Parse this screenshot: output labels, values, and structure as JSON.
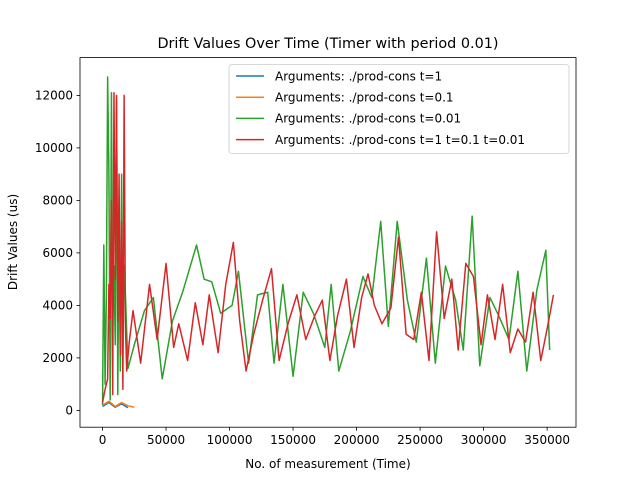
{
  "chart_data": {
    "type": "line",
    "title": "Drift Values Over Time (Timer with period 0.01)",
    "xlabel": "No. of measurement (Time)",
    "ylabel": "Drift Values (us)",
    "xlim": [
      -17750,
      372750
    ],
    "ylim": [
      -640,
      13440
    ],
    "x_ticks": [
      0,
      50000,
      100000,
      150000,
      200000,
      250000,
      300000,
      350000
    ],
    "x_tick_labels": [
      "0",
      "50000",
      "100000",
      "150000",
      "200000",
      "250000",
      "300000",
      "350000"
    ],
    "y_ticks": [
      0,
      2000,
      4000,
      6000,
      8000,
      10000,
      12000
    ],
    "y_tick_labels": [
      "0",
      "2000",
      "4000",
      "6000",
      "8000",
      "10000",
      "12000"
    ],
    "grid": false,
    "legend_position": "top-right",
    "series": [
      {
        "name": "Arguments: ./prod-cons t=1",
        "color": "#1f77b4",
        "x": [
          0,
          5000,
          10000,
          15000,
          20000
        ],
        "y": [
          150,
          300,
          120,
          250,
          100
        ]
      },
      {
        "name": "Arguments: ./prod-cons t=0.1",
        "color": "#ff7f0e",
        "x": [
          0,
          5000,
          10000,
          15000,
          20000,
          25000
        ],
        "y": [
          200,
          350,
          150,
          300,
          180,
          120
        ]
      },
      {
        "name": "Arguments: ./prod-cons t=0.01",
        "color": "#2ca02c",
        "x": [
          0,
          1000,
          2000,
          3000,
          4000,
          5000,
          6000,
          7000,
          8000,
          9000,
          10000,
          11000,
          12000,
          13000,
          14000,
          15000,
          16000,
          17000,
          18000,
          20000,
          25000,
          33000,
          40000,
          47000,
          55000,
          63000,
          74000,
          80000,
          86000,
          93000,
          102000,
          107000,
          115000,
          122000,
          130000,
          135000,
          142000,
          150000,
          158000,
          166000,
          175000,
          180000,
          186000,
          195000,
          205000,
          212000,
          219000,
          225000,
          232000,
          240000,
          247000,
          255000,
          262000,
          270000,
          278000,
          284000,
          291000,
          297000,
          305000,
          312000,
          320000,
          327000,
          334000,
          342000,
          349000,
          352000
        ],
        "y": [
          200,
          6300,
          1000,
          4300,
          12700,
          9100,
          400,
          12100,
          3200,
          5500,
          2500,
          11800,
          600,
          7800,
          1500,
          9000,
          2200,
          5500,
          4400,
          1600,
          2500,
          3800,
          4300,
          1200,
          3400,
          4500,
          6300,
          5000,
          4900,
          3700,
          4000,
          5300,
          1800,
          4400,
          4500,
          1800,
          4800,
          1300,
          4500,
          3700,
          2400,
          4800,
          1500,
          3000,
          5100,
          4300,
          7200,
          3200,
          7200,
          4200,
          2600,
          5800,
          1800,
          5500,
          4200,
          2300,
          7400,
          1700,
          4300,
          3600,
          2700,
          5300,
          1500,
          4600,
          6100,
          2300
        ]
      },
      {
        "name": "Arguments: ./prod-cons t=1 t=0.1 t=0.01",
        "color": "#d62728",
        "x": [
          0,
          2000,
          4000,
          5000,
          6000,
          7000,
          8000,
          9000,
          10000,
          11000,
          12000,
          13000,
          14000,
          15000,
          16000,
          17000,
          18000,
          19000,
          21000,
          24000,
          30000,
          37000,
          43000,
          50000,
          56000,
          60000,
          67000,
          73000,
          79000,
          84000,
          91000,
          97000,
          103000,
          108000,
          113000,
          119000,
          126000,
          133000,
          139000,
          146000,
          153000,
          160000,
          167000,
          173000,
          179000,
          185000,
          192000,
          198000,
          204000,
          209000,
          214000,
          220000,
          227000,
          233000,
          239000,
          245000,
          251000,
          257000,
          263000,
          269000,
          275000,
          280000,
          286000,
          292000,
          298000,
          303000,
          309000,
          315000,
          321000,
          327000,
          333000,
          339000,
          345000,
          350000,
          355000
        ],
        "y": [
          300,
          800,
          1200,
          4800,
          3500,
          8000,
          600,
          12100,
          5000,
          12000,
          3400,
          9000,
          2100,
          7200,
          800,
          12000,
          3300,
          1500,
          2600,
          3800,
          1800,
          4800,
          2700,
          5600,
          2400,
          3300,
          1900,
          4100,
          2500,
          4400,
          2200,
          4800,
          6400,
          3400,
          1500,
          2900,
          4200,
          5400,
          1900,
          3300,
          4400,
          2700,
          3600,
          4200,
          1900,
          3600,
          5000,
          2400,
          4300,
          5200,
          4000,
          3300,
          3900,
          6600,
          2900,
          2700,
          4500,
          1900,
          6800,
          3500,
          5000,
          2300,
          5600,
          5100,
          2500,
          4400,
          2700,
          4800,
          2200,
          3100,
          2600,
          4500,
          1900,
          3100,
          4400
        ]
      }
    ]
  }
}
